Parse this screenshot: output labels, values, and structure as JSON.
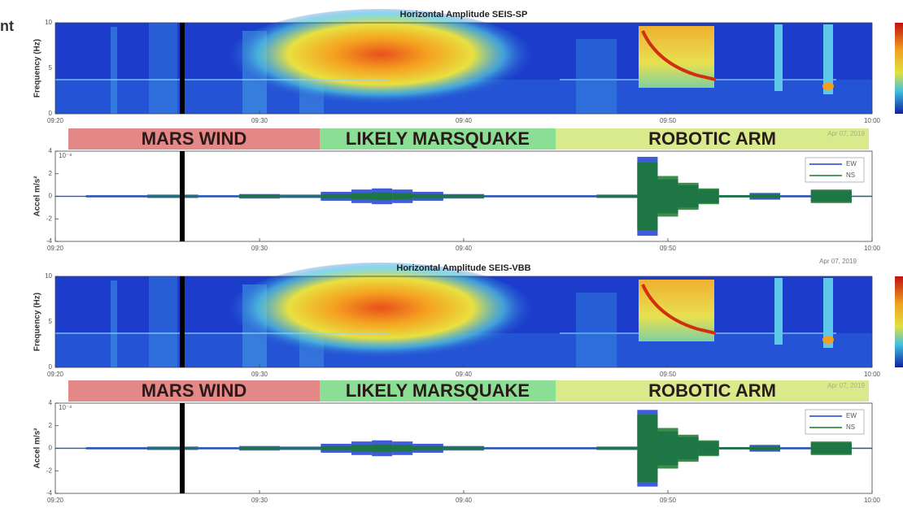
{
  "page_label": "nt",
  "chart_data": [
    {
      "type": "spectrogram",
      "title": "Horizontal Amplitude SEIS-SP",
      "ylabel": "Frequency (Hz)",
      "ylim": [
        0,
        10
      ],
      "yticks": [
        0,
        5,
        10
      ],
      "xlim": [
        "09:20",
        "10:00"
      ],
      "xticks": [
        "09:20",
        "09:30",
        "09:40",
        "09:50",
        "10:00"
      ]
    },
    {
      "type": "waveform",
      "ylabel": "Accel m/s²",
      "scale_label": "10⁻⁸",
      "annotations": [
        "MARS WIND",
        "LIKELY MARSQUAKE",
        "ROBOTIC ARM"
      ],
      "date": "Apr 07, 2019",
      "ylim": [
        -4,
        4
      ],
      "yticks": [
        -4,
        -2,
        0,
        2,
        4
      ],
      "xlim": [
        "09:20",
        "10:00"
      ],
      "xticks": [
        "09:20",
        "09:30",
        "09:40",
        "09:50",
        "10:00"
      ],
      "x": [
        "09:20",
        "09:23",
        "09:26",
        "09:28",
        "09:30",
        "09:32",
        "09:34",
        "09:35",
        "09:36",
        "09:37",
        "09:38",
        "09:40",
        "09:42",
        "09:45",
        "09:48",
        "09:49",
        "09:50",
        "09:51",
        "09:52",
        "09:53",
        "09:55",
        "09:56",
        "09:58",
        "10:00"
      ],
      "series": [
        {
          "name": "EW",
          "color": "#1f3fd6",
          "values": [
            0.05,
            0.1,
            0.15,
            0.1,
            0.2,
            0.15,
            0.4,
            0.6,
            0.7,
            0.6,
            0.4,
            0.2,
            0.1,
            0.1,
            0.15,
            3.5,
            1.5,
            1.0,
            0.6,
            0.1,
            0.3,
            0.1,
            0.5,
            0.05
          ]
        },
        {
          "name": "NS",
          "color": "#1a7a2a",
          "values": [
            0.03,
            0.05,
            0.08,
            0.05,
            0.1,
            0.08,
            0.2,
            0.3,
            0.35,
            0.3,
            0.2,
            0.1,
            0.05,
            0.05,
            0.1,
            3.0,
            1.8,
            1.2,
            0.7,
            0.1,
            0.2,
            0.05,
            0.6,
            0.05
          ]
        }
      ]
    },
    {
      "type": "spectrogram",
      "title": "Horizontal Amplitude SEIS-VBB",
      "ylabel": "Frequency (Hz)",
      "ylim": [
        0,
        10
      ],
      "yticks": [
        0,
        5,
        10
      ],
      "xlim": [
        "09:20",
        "10:00"
      ],
      "xticks": [
        "09:20",
        "09:30",
        "09:40",
        "09:50",
        "10:00"
      ]
    },
    {
      "type": "waveform",
      "ylabel": "Accel m/s²",
      "scale_label": "10⁻⁸",
      "annotations": [
        "MARS WIND",
        "LIKELY MARSQUAKE",
        "ROBOTIC ARM"
      ],
      "date": "Apr 07, 2019",
      "ylim": [
        -4,
        4
      ],
      "yticks": [
        -4,
        -2,
        0,
        2,
        4
      ],
      "xlim": [
        "09:20",
        "10:00"
      ],
      "xticks": [
        "09:20",
        "09:30",
        "09:40",
        "09:50",
        "10:00"
      ],
      "x": [
        "09:20",
        "09:23",
        "09:26",
        "09:28",
        "09:30",
        "09:32",
        "09:34",
        "09:35",
        "09:36",
        "09:37",
        "09:38",
        "09:40",
        "09:42",
        "09:45",
        "09:48",
        "09:49",
        "09:50",
        "09:51",
        "09:52",
        "09:53",
        "09:55",
        "09:56",
        "09:58",
        "10:00"
      ],
      "series": [
        {
          "name": "EW",
          "color": "#1f3fd6",
          "values": [
            0.05,
            0.1,
            0.15,
            0.1,
            0.2,
            0.15,
            0.4,
            0.6,
            0.7,
            0.6,
            0.4,
            0.2,
            0.1,
            0.1,
            0.15,
            3.4,
            1.5,
            1.0,
            0.6,
            0.1,
            0.3,
            0.1,
            0.5,
            0.05
          ]
        },
        {
          "name": "NS",
          "color": "#1a7a2a",
          "values": [
            0.03,
            0.05,
            0.08,
            0.05,
            0.1,
            0.08,
            0.2,
            0.3,
            0.35,
            0.3,
            0.2,
            0.1,
            0.05,
            0.05,
            0.1,
            3.0,
            1.8,
            1.2,
            0.7,
            0.1,
            0.2,
            0.05,
            0.6,
            0.05
          ]
        }
      ]
    }
  ]
}
